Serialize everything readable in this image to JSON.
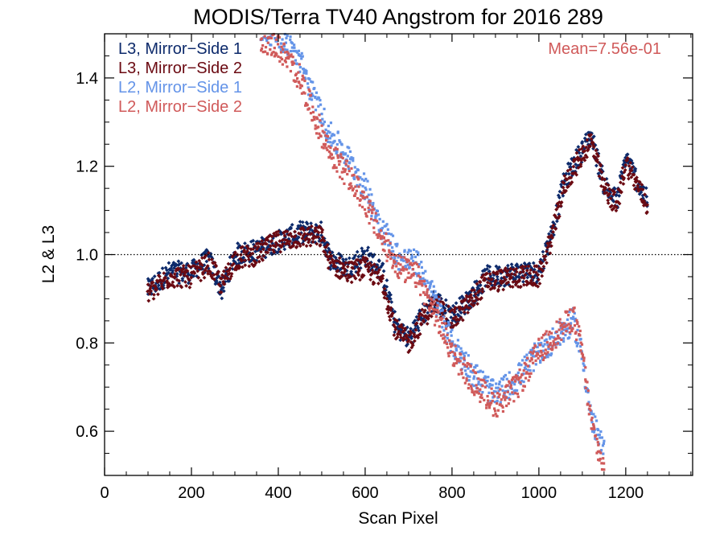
{
  "chart_data": {
    "type": "scatter",
    "title": "MODIS/Terra TV40 Angstrom for 2016 289",
    "xlabel": "Scan Pixel",
    "ylabel": "L2 & L3",
    "xlim": [
      0,
      1354
    ],
    "ylim": [
      0.5,
      1.5
    ],
    "x_ticks": [
      0,
      200,
      400,
      600,
      800,
      1000,
      1200
    ],
    "x_tick_labels": [
      "0",
      "200",
      "400",
      "600",
      "800",
      "1000",
      "1200"
    ],
    "y_ticks": [
      0.6,
      0.8,
      1.0,
      1.2,
      1.4
    ],
    "y_tick_labels": [
      "0.6",
      "0.8",
      "1.0",
      "1.2",
      "1.4"
    ],
    "reference_line": 1.0,
    "annotation": "Mean=7.56e-01",
    "legend_position": "top-left",
    "series": [
      {
        "name": "L3, Mirror−Side 1",
        "color": "#0d2a6b",
        "profile": [
          [
            100,
            0.92
          ],
          [
            150,
            0.96
          ],
          [
            200,
            0.96
          ],
          [
            240,
            0.99
          ],
          [
            270,
            0.92
          ],
          [
            300,
            1.0
          ],
          [
            350,
            1.01
          ],
          [
            400,
            1.03
          ],
          [
            450,
            1.05
          ],
          [
            500,
            1.05
          ],
          [
            520,
            0.99
          ],
          [
            560,
            0.97
          ],
          [
            600,
            1.0
          ],
          [
            640,
            0.96
          ],
          [
            670,
            0.84
          ],
          [
            700,
            0.81
          ],
          [
            730,
            0.86
          ],
          [
            760,
            0.9
          ],
          [
            800,
            0.86
          ],
          [
            840,
            0.9
          ],
          [
            880,
            0.95
          ],
          [
            900,
            0.95
          ],
          [
            950,
            0.96
          ],
          [
            1000,
            0.96
          ],
          [
            1030,
            1.05
          ],
          [
            1060,
            1.17
          ],
          [
            1090,
            1.22
          ],
          [
            1120,
            1.27
          ],
          [
            1150,
            1.16
          ],
          [
            1180,
            1.12
          ],
          [
            1200,
            1.22
          ],
          [
            1220,
            1.18
          ],
          [
            1250,
            1.12
          ]
        ]
      },
      {
        "name": "L3, Mirror−Side 2",
        "color": "#6b0a12",
        "profile": [
          [
            100,
            0.91
          ],
          [
            150,
            0.95
          ],
          [
            200,
            0.95
          ],
          [
            240,
            0.98
          ],
          [
            270,
            0.93
          ],
          [
            300,
            0.99
          ],
          [
            350,
            1.0
          ],
          [
            400,
            1.03
          ],
          [
            450,
            1.04
          ],
          [
            500,
            1.04
          ],
          [
            520,
            0.98
          ],
          [
            560,
            0.96
          ],
          [
            600,
            0.97
          ],
          [
            640,
            0.94
          ],
          [
            670,
            0.83
          ],
          [
            700,
            0.8
          ],
          [
            730,
            0.85
          ],
          [
            760,
            0.89
          ],
          [
            800,
            0.85
          ],
          [
            840,
            0.89
          ],
          [
            880,
            0.94
          ],
          [
            900,
            0.94
          ],
          [
            950,
            0.95
          ],
          [
            1000,
            0.95
          ],
          [
            1030,
            1.04
          ],
          [
            1060,
            1.16
          ],
          [
            1090,
            1.21
          ],
          [
            1120,
            1.26
          ],
          [
            1150,
            1.15
          ],
          [
            1180,
            1.11
          ],
          [
            1200,
            1.21
          ],
          [
            1220,
            1.17
          ],
          [
            1250,
            1.11
          ]
        ]
      },
      {
        "name": "L2, Mirror−Side 1",
        "color": "#6494e8",
        "profile": [
          [
            360,
            1.51
          ],
          [
            400,
            1.5
          ],
          [
            450,
            1.44
          ],
          [
            480,
            1.36
          ],
          [
            520,
            1.27
          ],
          [
            560,
            1.22
          ],
          [
            600,
            1.15
          ],
          [
            640,
            1.06
          ],
          [
            680,
            0.99
          ],
          [
            720,
            0.98
          ],
          [
            760,
            0.9
          ],
          [
            800,
            0.8
          ],
          [
            850,
            0.73
          ],
          [
            900,
            0.68
          ],
          [
            950,
            0.72
          ],
          [
            1000,
            0.78
          ],
          [
            1050,
            0.82
          ],
          [
            1080,
            0.85
          ],
          [
            1100,
            0.77
          ],
          [
            1120,
            0.63
          ],
          [
            1150,
            0.55
          ]
        ]
      },
      {
        "name": "L2, Mirror−Side 2",
        "color": "#d05a5a",
        "profile": [
          [
            360,
            1.49
          ],
          [
            400,
            1.47
          ],
          [
            450,
            1.4
          ],
          [
            480,
            1.32
          ],
          [
            520,
            1.23
          ],
          [
            560,
            1.18
          ],
          [
            600,
            1.12
          ],
          [
            640,
            1.03
          ],
          [
            680,
            0.97
          ],
          [
            720,
            0.95
          ],
          [
            760,
            0.87
          ],
          [
            800,
            0.78
          ],
          [
            850,
            0.71
          ],
          [
            900,
            0.66
          ],
          [
            950,
            0.7
          ],
          [
            1000,
            0.78
          ],
          [
            1050,
            0.83
          ],
          [
            1080,
            0.86
          ],
          [
            1100,
            0.78
          ],
          [
            1120,
            0.62
          ],
          [
            1150,
            0.51
          ]
        ]
      }
    ]
  }
}
